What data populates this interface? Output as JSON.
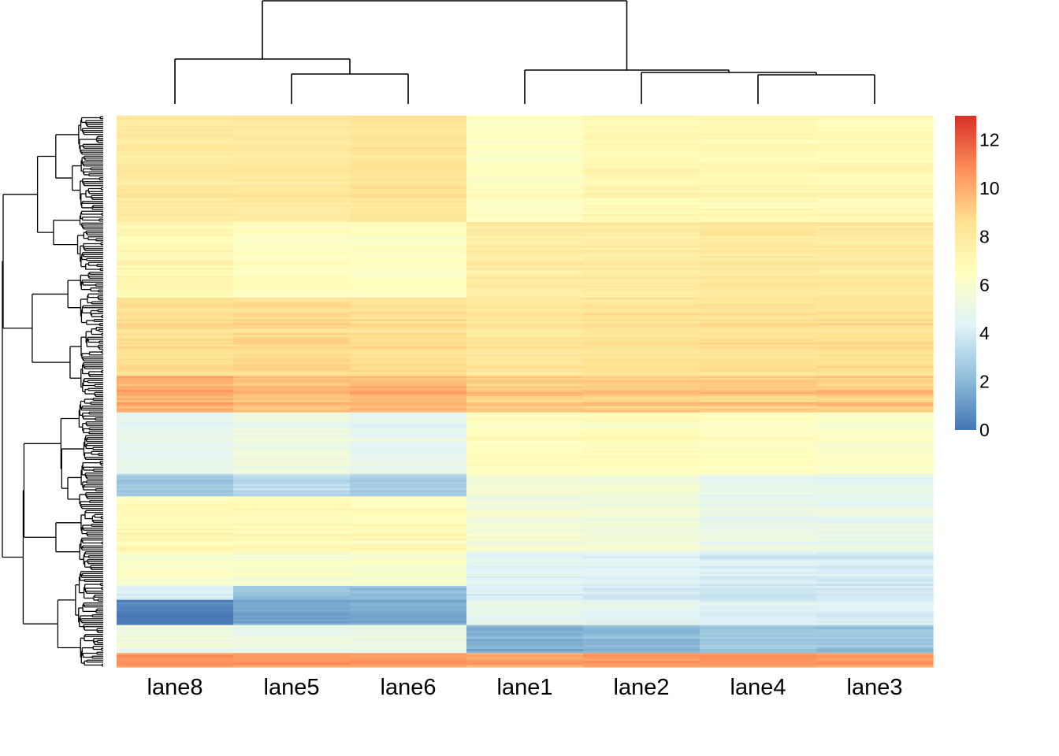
{
  "chart_data": {
    "type": "heatmap",
    "title": "",
    "columns": [
      "lane8",
      "lane5",
      "lane6",
      "lane1",
      "lane2",
      "lane4",
      "lane3"
    ],
    "column_dendrogram_merges": [
      {
        "left": "lane5",
        "right": "lane6"
      },
      {
        "left": "lane8",
        "right": [
          "lane5",
          "lane6"
        ]
      },
      {
        "left": "lane4",
        "right": "lane3"
      },
      {
        "left": "lane2",
        "right": [
          "lane4",
          "lane3"
        ]
      },
      {
        "left": "lane1",
        "right": [
          "lane2",
          "lane4",
          "lane3"
        ]
      },
      {
        "left": [
          "lane8",
          "lane5",
          "lane6"
        ],
        "right": [
          "lane1",
          "lane2",
          "lane4",
          "lane3"
        ]
      }
    ],
    "row_dendrogram": "hierarchical clustering of rows (many rows, no row labels shown)",
    "row_blocks": [
      {
        "rows_fraction": 0.19,
        "values": [
          8.0,
          8.0,
          8.3,
          6.4,
          7.0,
          7.0,
          6.9
        ],
        "jitter": 0.5
      },
      {
        "rows_fraction": 0.135,
        "values": [
          7.0,
          6.4,
          6.3,
          7.7,
          7.8,
          8.0,
          7.9
        ],
        "jitter": 0.5
      },
      {
        "rows_fraction": 0.14,
        "values": [
          8.6,
          8.8,
          8.6,
          8.2,
          8.4,
          8.5,
          8.5
        ],
        "jitter": 0.5
      },
      {
        "rows_fraction": 0.065,
        "values": [
          10.0,
          9.5,
          9.8,
          9.2,
          9.3,
          9.3,
          9.3
        ],
        "jitter": 0.6
      },
      {
        "rows_fraction": 0.11,
        "values": [
          4.8,
          5.3,
          4.8,
          6.5,
          6.6,
          6.4,
          6.1
        ],
        "jitter": 0.5
      },
      {
        "rows_fraction": 0.04,
        "values": [
          2.5,
          3.2,
          2.7,
          5.6,
          5.6,
          4.8,
          4.7
        ],
        "jitter": 0.5
      },
      {
        "rows_fraction": 0.1,
        "values": [
          6.9,
          6.8,
          6.8,
          5.6,
          5.5,
          5.0,
          4.9
        ],
        "jitter": 0.6
      },
      {
        "rows_fraction": 0.06,
        "values": [
          6.1,
          6.0,
          6.0,
          4.6,
          4.4,
          4.1,
          4.0
        ],
        "jitter": 0.6
      },
      {
        "rows_fraction": 0.025,
        "values": [
          4.3,
          2.5,
          2.2,
          4.3,
          4.1,
          4.0,
          4.1
        ],
        "jitter": 0.5
      },
      {
        "rows_fraction": 0.045,
        "values": [
          0.3,
          1.4,
          1.6,
          4.8,
          4.6,
          4.3,
          4.2
        ],
        "jitter": 0.4
      },
      {
        "rows_fraction": 0.05,
        "values": [
          5.3,
          5.1,
          5.1,
          1.8,
          2.0,
          2.6,
          2.4
        ],
        "jitter": 0.6
      },
      {
        "rows_fraction": 0.025,
        "values": [
          10.6,
          10.6,
          10.4,
          10.2,
          10.4,
          10.5,
          10.3
        ],
        "jitter": 0.5
      }
    ],
    "colorbar": {
      "min": 0,
      "max": 13,
      "ticks": [
        "0",
        "2",
        "4",
        "6",
        "8",
        "10",
        "12"
      ],
      "tick_values": [
        0,
        2,
        4,
        6,
        8,
        10,
        12
      ],
      "palette": [
        "#4575b4",
        "#91bfdb",
        "#e0f3f8",
        "#ffffbf",
        "#fee090",
        "#fc8d59",
        "#d73027"
      ]
    },
    "xlabel": "",
    "ylabel": ""
  }
}
